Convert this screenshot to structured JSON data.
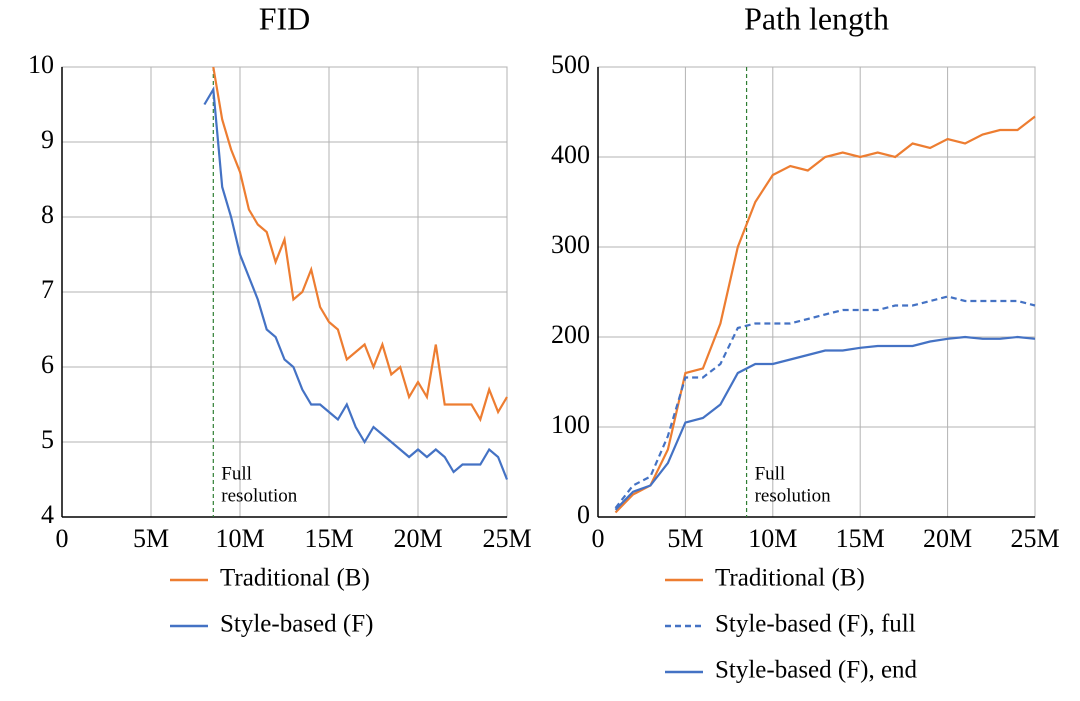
{
  "chart_data": [
    {
      "type": "line",
      "title": "FID",
      "x": [
        8000000,
        8500000,
        9000000,
        9500000,
        10000000,
        10500000,
        11000000,
        11500000,
        12000000,
        12500000,
        13000000,
        13500000,
        14000000,
        14500000,
        15000000,
        15500000,
        16000000,
        16500000,
        17000000,
        17500000,
        18000000,
        18500000,
        19000000,
        19500000,
        20000000,
        20500000,
        21000000,
        21500000,
        22000000,
        22500000,
        23000000,
        23500000,
        24000000,
        24500000,
        25000000
      ],
      "series": [
        {
          "name": "Traditional (B)",
          "color": "#ed7d31",
          "style": "solid",
          "values": [
            null,
            10,
            9.3,
            8.9,
            8.6,
            8.1,
            7.9,
            7.8,
            7.4,
            7.7,
            6.9,
            7.0,
            7.3,
            6.8,
            6.6,
            6.5,
            6.1,
            6.2,
            6.3,
            6.0,
            6.3,
            5.9,
            6.0,
            5.6,
            5.8,
            5.6,
            6.3,
            5.5,
            5.5,
            5.5,
            5.5,
            5.3,
            5.7,
            5.4,
            5.6
          ]
        },
        {
          "name": "Style-based (F)",
          "color": "#4472c4",
          "style": "solid",
          "values": [
            9.5,
            9.7,
            8.4,
            8.0,
            7.5,
            7.2,
            6.9,
            6.5,
            6.4,
            6.1,
            6.0,
            5.7,
            5.5,
            5.5,
            5.4,
            5.3,
            5.5,
            5.2,
            5.0,
            5.2,
            5.1,
            5.0,
            4.9,
            4.8,
            4.9,
            4.8,
            4.9,
            4.8,
            4.6,
            4.7,
            4.7,
            4.7,
            4.9,
            4.8,
            4.5
          ]
        }
      ],
      "xlim": [
        0,
        25000000
      ],
      "xticks": [
        0,
        {
          "value": 5000000,
          "label": "5M"
        },
        {
          "value": 10000000,
          "label": "10M"
        },
        {
          "value": 15000000,
          "label": "15M"
        },
        {
          "value": 20000000,
          "label": "20M"
        },
        {
          "value": 25000000,
          "label": "25M"
        }
      ],
      "ylim": [
        4,
        10
      ],
      "yticks": [
        4,
        5,
        6,
        7,
        8,
        9,
        10
      ],
      "grid": true,
      "legend": "below",
      "annotations": [
        {
          "text_lines": [
            "Full",
            "resolution"
          ],
          "x": 8500000,
          "color": "#2e7d32"
        }
      ]
    },
    {
      "type": "line",
      "title": "Path length",
      "x": [
        1000000,
        2000000,
        3000000,
        4000000,
        5000000,
        6000000,
        7000000,
        8000000,
        9000000,
        10000000,
        11000000,
        12000000,
        13000000,
        14000000,
        15000000,
        16000000,
        17000000,
        18000000,
        19000000,
        20000000,
        21000000,
        22000000,
        23000000,
        24000000,
        25000000
      ],
      "series": [
        {
          "name": "Traditional (B)",
          "color": "#ed7d31",
          "style": "solid",
          "values": [
            5,
            25,
            35,
            75,
            160,
            165,
            215,
            300,
            350,
            380,
            390,
            385,
            400,
            405,
            400,
            405,
            400,
            415,
            410,
            420,
            415,
            425,
            430,
            430,
            445
          ]
        },
        {
          "name": "Style-based (F), full",
          "color": "#4472c4",
          "style": "dashed",
          "values": [
            10,
            35,
            45,
            90,
            155,
            155,
            170,
            210,
            215,
            215,
            215,
            220,
            225,
            230,
            230,
            230,
            235,
            235,
            240,
            245,
            240,
            240,
            240,
            240,
            235
          ]
        },
        {
          "name": "Style-based (F), end",
          "color": "#4472c4",
          "style": "solid",
          "values": [
            8,
            28,
            35,
            60,
            105,
            110,
            125,
            160,
            170,
            170,
            175,
            180,
            185,
            185,
            188,
            190,
            190,
            190,
            195,
            198,
            200,
            198,
            198,
            200,
            198
          ]
        }
      ],
      "xlim": [
        0,
        25000000
      ],
      "xticks": [
        0,
        {
          "value": 5000000,
          "label": "5M"
        },
        {
          "value": 10000000,
          "label": "10M"
        },
        {
          "value": 15000000,
          "label": "15M"
        },
        {
          "value": 20000000,
          "label": "20M"
        },
        {
          "value": 25000000,
          "label": "25M"
        }
      ],
      "ylim": [
        0,
        500
      ],
      "yticks": [
        0,
        100,
        200,
        300,
        400,
        500
      ],
      "grid": true,
      "legend": "below",
      "annotations": [
        {
          "text_lines": [
            "Full",
            "resolution"
          ],
          "x": 8500000,
          "color": "#2e7d32"
        }
      ]
    }
  ]
}
